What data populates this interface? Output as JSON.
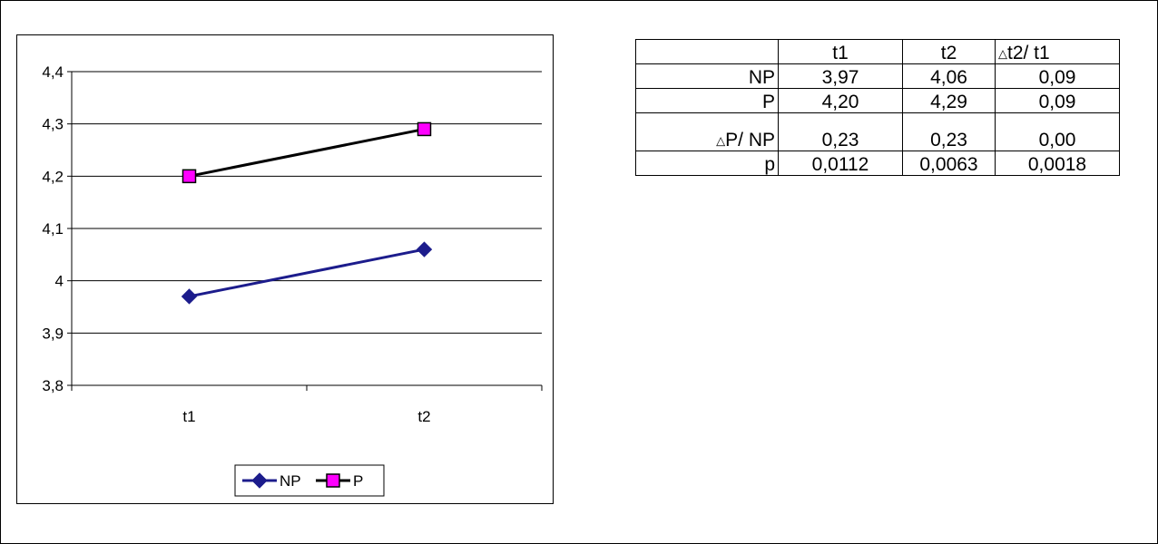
{
  "chart_data": {
    "type": "line",
    "categories": [
      "t1",
      "t2"
    ],
    "series": [
      {
        "name": "NP",
        "values": [
          3.97,
          4.06
        ],
        "color": "#1c1c8c",
        "marker": "diamond"
      },
      {
        "name": "P",
        "values": [
          4.2,
          4.29
        ],
        "color": "#000000",
        "marker_fill": "#ff00ff",
        "marker": "square"
      }
    ],
    "ylim": [
      3.8,
      4.4
    ],
    "y_ticks": [
      "3,8",
      "3,9",
      "4",
      "4,1",
      "4,2",
      "4,3",
      "4,4"
    ],
    "grid": true,
    "legend": "bottom",
    "title": "",
    "xlabel": "",
    "ylabel": ""
  },
  "table": {
    "header": [
      "",
      "t1",
      "t2",
      "t2/ t1"
    ],
    "header_delta_symbol": "△",
    "rows": [
      {
        "label": "NP",
        "values": [
          "3,97",
          "4,06",
          "0,09"
        ]
      },
      {
        "label": "P",
        "values": [
          "4,20",
          "4,29",
          "0,09"
        ]
      },
      {
        "label": "P/ NP",
        "delta_symbol": "△",
        "values": [
          "0,23",
          "0,23",
          "0,00"
        ]
      },
      {
        "label": "p",
        "values": [
          "0,0112",
          "0,0063",
          "0,0018"
        ]
      }
    ]
  }
}
